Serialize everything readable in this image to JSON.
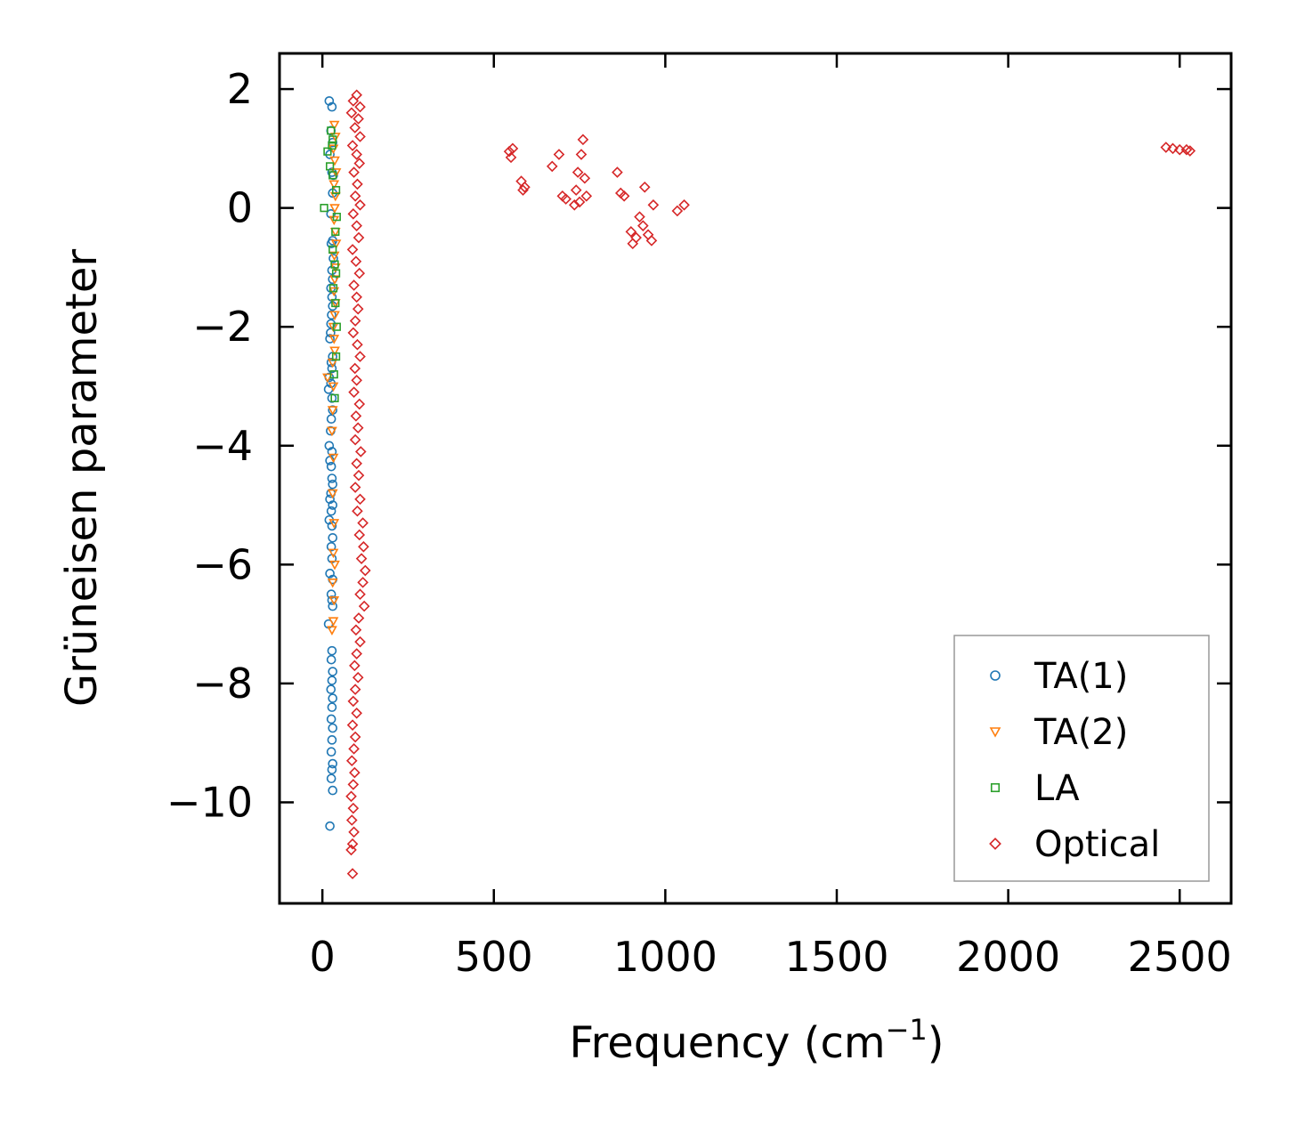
{
  "chart_data": {
    "type": "scatter",
    "title": "",
    "xlabel": "Frequency (cm",
    "xlabel_superscript": "−1",
    "xlabel_suffix": ")",
    "ylabel": "Grüneisen parameter",
    "xlim": [
      -125,
      2650
    ],
    "ylim": [
      -11.7,
      2.6
    ],
    "xticks": [
      0,
      500,
      1000,
      1500,
      2000,
      2500
    ],
    "xtick_labels": [
      "0",
      "500",
      "1000",
      "1500",
      "2000",
      "2500"
    ],
    "yticks": [
      2,
      0,
      -2,
      -4,
      -6,
      -8,
      -10
    ],
    "ytick_labels": [
      "2",
      "0",
      "−2",
      "−4",
      "−6",
      "−8",
      "−10"
    ],
    "grid": false,
    "legend_position": "bottom-right",
    "series": [
      {
        "name": "TA(1)",
        "marker": "circle",
        "color": "#1f77b4",
        "points": [
          [
            20,
            1.8
          ],
          [
            28,
            1.7
          ],
          [
            25,
            1.3
          ],
          [
            30,
            1.1
          ],
          [
            22,
            0.9
          ],
          [
            28,
            0.6
          ],
          [
            32,
            0.55
          ],
          [
            30,
            0.25
          ],
          [
            25,
            -0.1
          ],
          [
            30,
            -0.55
          ],
          [
            26,
            -0.6
          ],
          [
            32,
            -0.85
          ],
          [
            28,
            -1.05
          ],
          [
            30,
            -1.2
          ],
          [
            25,
            -1.35
          ],
          [
            28,
            -1.5
          ],
          [
            30,
            -1.65
          ],
          [
            27,
            -1.8
          ],
          [
            25,
            -1.95
          ],
          [
            24,
            -2.1
          ],
          [
            22,
            -2.2
          ],
          [
            30,
            -2.5
          ],
          [
            26,
            -2.6
          ],
          [
            28,
            -2.7
          ],
          [
            20,
            -2.85
          ],
          [
            25,
            -2.95
          ],
          [
            18,
            -3.05
          ],
          [
            28,
            -3.2
          ],
          [
            30,
            -3.4
          ],
          [
            26,
            -3.55
          ],
          [
            24,
            -3.75
          ],
          [
            20,
            -4.0
          ],
          [
            28,
            -4.1
          ],
          [
            22,
            -4.25
          ],
          [
            26,
            -4.35
          ],
          [
            28,
            -4.55
          ],
          [
            30,
            -4.65
          ],
          [
            25,
            -4.8
          ],
          [
            22,
            -4.9
          ],
          [
            30,
            -5.0
          ],
          [
            26,
            -5.1
          ],
          [
            20,
            -5.25
          ],
          [
            28,
            -5.35
          ],
          [
            30,
            -5.55
          ],
          [
            26,
            -5.7
          ],
          [
            28,
            -5.9
          ],
          [
            22,
            -6.15
          ],
          [
            30,
            -6.25
          ],
          [
            26,
            -6.5
          ],
          [
            28,
            -6.6
          ],
          [
            30,
            -6.7
          ],
          [
            18,
            -7.0
          ],
          [
            28,
            -7.45
          ],
          [
            26,
            -7.6
          ],
          [
            30,
            -7.8
          ],
          [
            28,
            -7.95
          ],
          [
            25,
            -8.1
          ],
          [
            30,
            -8.25
          ],
          [
            28,
            -8.4
          ],
          [
            26,
            -8.6
          ],
          [
            30,
            -8.75
          ],
          [
            28,
            -8.95
          ],
          [
            26,
            -9.15
          ],
          [
            30,
            -9.35
          ],
          [
            28,
            -9.45
          ],
          [
            26,
            -9.6
          ],
          [
            30,
            -9.8
          ],
          [
            22,
            -10.4
          ]
        ]
      },
      {
        "name": "TA(2)",
        "marker": "triangle-down",
        "color": "#ff7f0e",
        "points": [
          [
            35,
            1.4
          ],
          [
            38,
            1.2
          ],
          [
            32,
            1.0
          ],
          [
            36,
            0.8
          ],
          [
            40,
            0.6
          ],
          [
            34,
            0.4
          ],
          [
            38,
            0.2
          ],
          [
            36,
            0.0
          ],
          [
            34,
            -0.2
          ],
          [
            38,
            -0.4
          ],
          [
            40,
            -0.6
          ],
          [
            35,
            -0.8
          ],
          [
            38,
            -1.0
          ],
          [
            36,
            -1.2
          ],
          [
            34,
            -1.4
          ],
          [
            38,
            -1.6
          ],
          [
            36,
            -1.8
          ],
          [
            32,
            -2.0
          ],
          [
            34,
            -2.2
          ],
          [
            36,
            -2.4
          ],
          [
            30,
            -2.6
          ],
          [
            15,
            -2.85
          ],
          [
            32,
            -3.0
          ],
          [
            30,
            -3.4
          ],
          [
            28,
            -3.75
          ],
          [
            32,
            -4.2
          ],
          [
            30,
            -4.8
          ],
          [
            34,
            -5.3
          ],
          [
            32,
            -5.8
          ],
          [
            36,
            -6.0
          ],
          [
            30,
            -6.3
          ],
          [
            34,
            -6.6
          ],
          [
            32,
            -6.95
          ],
          [
            28,
            -7.1
          ]
        ]
      },
      {
        "name": "LA",
        "marker": "square",
        "color": "#2ca02c",
        "points": [
          [
            25,
            1.3
          ],
          [
            30,
            1.15
          ],
          [
            28,
            1.05
          ],
          [
            15,
            0.95
          ],
          [
            22,
            0.7
          ],
          [
            30,
            0.55
          ],
          [
            40,
            0.3
          ],
          [
            5,
            0.0
          ],
          [
            42,
            -0.15
          ],
          [
            38,
            -0.4
          ],
          [
            30,
            -0.7
          ],
          [
            36,
            -0.95
          ],
          [
            40,
            -1.1
          ],
          [
            32,
            -1.35
          ],
          [
            38,
            -1.6
          ],
          [
            42,
            -2.0
          ],
          [
            40,
            -2.5
          ],
          [
            34,
            -2.8
          ],
          [
            36,
            -3.2
          ]
        ]
      },
      {
        "name": "Optical",
        "marker": "diamond",
        "color": "#d62728",
        "points": [
          [
            90,
            1.8
          ],
          [
            100,
            1.9
          ],
          [
            110,
            1.7
          ],
          [
            85,
            1.6
          ],
          [
            105,
            1.5
          ],
          [
            95,
            1.35
          ],
          [
            110,
            1.2
          ],
          [
            88,
            1.05
          ],
          [
            100,
            0.9
          ],
          [
            108,
            0.75
          ],
          [
            92,
            0.6
          ],
          [
            102,
            0.4
          ],
          [
            96,
            0.2
          ],
          [
            110,
            0.05
          ],
          [
            90,
            -0.1
          ],
          [
            100,
            -0.3
          ],
          [
            106,
            -0.5
          ],
          [
            88,
            -0.7
          ],
          [
            98,
            -0.9
          ],
          [
            108,
            -1.1
          ],
          [
            92,
            -1.3
          ],
          [
            100,
            -1.5
          ],
          [
            104,
            -1.7
          ],
          [
            96,
            -1.9
          ],
          [
            90,
            -2.1
          ],
          [
            102,
            -2.3
          ],
          [
            110,
            -2.5
          ],
          [
            95,
            -2.7
          ],
          [
            100,
            -2.9
          ],
          [
            92,
            -3.1
          ],
          [
            108,
            -3.3
          ],
          [
            98,
            -3.5
          ],
          [
            104,
            -3.7
          ],
          [
            96,
            -3.9
          ],
          [
            112,
            -4.1
          ],
          [
            100,
            -4.3
          ],
          [
            106,
            -4.5
          ],
          [
            96,
            -4.7
          ],
          [
            110,
            -4.9
          ],
          [
            102,
            -5.1
          ],
          [
            118,
            -5.3
          ],
          [
            108,
            -5.5
          ],
          [
            120,
            -5.7
          ],
          [
            114,
            -5.9
          ],
          [
            125,
            -6.1
          ],
          [
            118,
            -6.3
          ],
          [
            110,
            -6.5
          ],
          [
            122,
            -6.7
          ],
          [
            106,
            -6.9
          ],
          [
            98,
            -7.1
          ],
          [
            110,
            -7.3
          ],
          [
            100,
            -7.5
          ],
          [
            94,
            -7.7
          ],
          [
            104,
            -7.9
          ],
          [
            96,
            -8.1
          ],
          [
            90,
            -8.3
          ],
          [
            100,
            -8.5
          ],
          [
            88,
            -8.7
          ],
          [
            96,
            -8.9
          ],
          [
            92,
            -9.1
          ],
          [
            86,
            -9.3
          ],
          [
            94,
            -9.5
          ],
          [
            90,
            -9.7
          ],
          [
            84,
            -9.9
          ],
          [
            90,
            -10.1
          ],
          [
            86,
            -10.3
          ],
          [
            92,
            -10.5
          ],
          [
            88,
            -10.7
          ],
          [
            84,
            -10.8
          ],
          [
            88,
            -11.2
          ],
          [
            545,
            0.95
          ],
          [
            555,
            1.0
          ],
          [
            550,
            0.85
          ],
          [
            580,
            0.45
          ],
          [
            590,
            0.35
          ],
          [
            585,
            0.3
          ],
          [
            670,
            0.7
          ],
          [
            690,
            0.9
          ],
          [
            700,
            0.2
          ],
          [
            710,
            0.15
          ],
          [
            740,
            0.3
          ],
          [
            745,
            0.6
          ],
          [
            755,
            0.9
          ],
          [
            760,
            1.15
          ],
          [
            765,
            0.5
          ],
          [
            770,
            0.2
          ],
          [
            750,
            0.1
          ],
          [
            735,
            0.05
          ],
          [
            860,
            0.6
          ],
          [
            870,
            0.25
          ],
          [
            880,
            0.2
          ],
          [
            900,
            -0.4
          ],
          [
            905,
            -0.6
          ],
          [
            915,
            -0.5
          ],
          [
            925,
            -0.15
          ],
          [
            935,
            -0.3
          ],
          [
            940,
            0.35
          ],
          [
            950,
            -0.45
          ],
          [
            960,
            -0.55
          ],
          [
            965,
            0.05
          ],
          [
            1035,
            -0.05
          ],
          [
            1055,
            0.05
          ],
          [
            2460,
            1.02
          ],
          [
            2480,
            1.0
          ],
          [
            2500,
            0.98
          ],
          [
            2520,
            0.98
          ],
          [
            2530,
            0.96
          ]
        ]
      }
    ]
  }
}
